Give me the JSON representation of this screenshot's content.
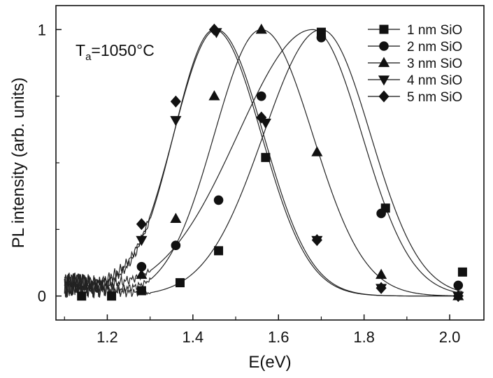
{
  "chart_data": {
    "type": "line",
    "title": "",
    "xlabel": "E(eV)",
    "ylabel": "PL intensity (arb. units)",
    "annotation": {
      "base": "T",
      "sub": "a",
      "rest": "=1050°C"
    },
    "xlim": [
      1.08,
      2.08
    ],
    "ylim": [
      -0.09,
      1.09
    ],
    "x_ticks": [
      1.2,
      1.4,
      1.6,
      1.8,
      2.0
    ],
    "x_tick_labels": [
      "1.2",
      "1.4",
      "1.6",
      "1.8",
      "2.0"
    ],
    "y_ticks": [
      0,
      1
    ],
    "y_tick_labels": [
      "0",
      "1"
    ],
    "legend_position": "top-right",
    "series": [
      {
        "name": "1 nm SiO",
        "marker": "square",
        "peak": 1.7,
        "sigma_low": 0.135,
        "sigma_high": 0.115,
        "baseline": 0.0,
        "marker_points": [
          [
            1.14,
            0.0
          ],
          [
            1.21,
            0.0
          ],
          [
            1.28,
            0.02
          ],
          [
            1.37,
            0.05
          ],
          [
            1.46,
            0.17
          ],
          [
            1.57,
            0.52
          ],
          [
            1.7,
            0.99
          ],
          [
            1.85,
            0.33
          ],
          [
            2.03,
            0.09
          ]
        ]
      },
      {
        "name": "2 nm SiO",
        "marker": "circle",
        "peak": 1.68,
        "sigma_low": 0.175,
        "sigma_high": 0.115,
        "baseline": 0.0,
        "marker_points": [
          [
            1.28,
            0.11
          ],
          [
            1.36,
            0.19
          ],
          [
            1.46,
            0.36
          ],
          [
            1.56,
            0.75
          ],
          [
            1.7,
            0.97
          ],
          [
            1.84,
            0.31
          ],
          [
            2.02,
            0.04
          ]
        ]
      },
      {
        "name": "3 nm SiO",
        "marker": "triangle-up",
        "peak": 1.56,
        "sigma_low": 0.11,
        "sigma_high": 0.12,
        "baseline": 0.0,
        "marker_points": [
          [
            1.28,
            0.08
          ],
          [
            1.36,
            0.29
          ],
          [
            1.45,
            0.75
          ],
          [
            1.56,
            1.0
          ],
          [
            1.69,
            0.54
          ],
          [
            1.84,
            0.08
          ],
          [
            2.02,
            0.0
          ]
        ]
      },
      {
        "name": "4 nm SiO",
        "marker": "triangle-down",
        "peak": 1.455,
        "sigma_low": 0.1,
        "sigma_high": 0.11,
        "baseline": 0.0,
        "marker_points": [
          [
            1.28,
            0.21
          ],
          [
            1.36,
            0.66
          ],
          [
            1.455,
            0.99
          ],
          [
            1.57,
            0.65
          ],
          [
            1.69,
            0.21
          ],
          [
            1.84,
            0.03
          ],
          [
            2.02,
            0.0
          ]
        ]
      },
      {
        "name": "5 nm SiO",
        "marker": "diamond",
        "peak": 1.45,
        "sigma_low": 0.095,
        "sigma_high": 0.11,
        "baseline": 0.0,
        "marker_points": [
          [
            1.28,
            0.27
          ],
          [
            1.36,
            0.73
          ],
          [
            1.45,
            1.0
          ],
          [
            1.56,
            0.67
          ],
          [
            1.69,
            0.21
          ],
          [
            1.84,
            0.03
          ],
          [
            2.02,
            0.0
          ]
        ]
      }
    ]
  }
}
